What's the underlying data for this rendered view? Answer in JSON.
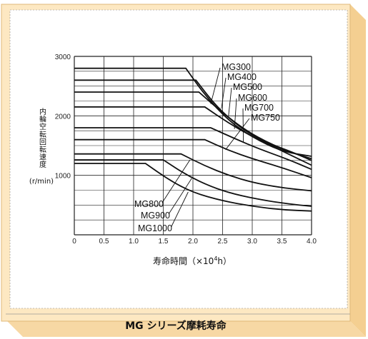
{
  "caption": "MG シリーズ摩耗寿命",
  "colors": {
    "panel": "#fde8c2",
    "panel_side": "#f6d49b",
    "axis": "#222222"
  },
  "chart_data": {
    "type": "line",
    "xlabel_prefix": "寿命時間（×10",
    "xlabel_sup": "4",
    "xlabel_suffix": "h）",
    "ylabel": "内輪空転回転速度",
    "ylabel_unit": "(r/min)",
    "xlim": [
      0,
      4.0
    ],
    "ylim": [
      0,
      3000
    ],
    "xticks": [
      "0",
      "0.5",
      "1.0",
      "1.5",
      "2.0",
      "2.5",
      "3.0",
      "3.5",
      "4.0"
    ],
    "yticks": [
      "1000",
      "2000",
      "3000"
    ],
    "legend": "annotations with leader lines",
    "series": [
      {
        "name": "MG300",
        "points": [
          [
            0,
            2800
          ],
          [
            1.88,
            2800
          ],
          [
            2.2,
            2350
          ],
          [
            2.6,
            1920
          ],
          [
            3.0,
            1640
          ],
          [
            3.5,
            1400
          ],
          [
            4.0,
            1320
          ]
        ]
      },
      {
        "name": "MG400",
        "points": [
          [
            0,
            2600
          ],
          [
            2.05,
            2600
          ],
          [
            2.4,
            2150
          ],
          [
            2.8,
            1800
          ],
          [
            3.2,
            1560
          ],
          [
            3.6,
            1400
          ],
          [
            4.0,
            1280
          ]
        ]
      },
      {
        "name": "MG500",
        "points": [
          [
            0,
            2400
          ],
          [
            2.1,
            2400
          ],
          [
            2.5,
            2050
          ],
          [
            2.9,
            1750
          ],
          [
            3.3,
            1530
          ],
          [
            3.7,
            1380
          ],
          [
            4.0,
            1250
          ]
        ]
      },
      {
        "name": "MG600",
        "points": [
          [
            0,
            2150
          ],
          [
            2.2,
            2150
          ],
          [
            2.6,
            1880
          ],
          [
            3.0,
            1650
          ],
          [
            3.4,
            1460
          ],
          [
            4.0,
            1170
          ]
        ]
      },
      {
        "name": "MG700",
        "points": [
          [
            0,
            1800
          ],
          [
            2.3,
            1800
          ],
          [
            2.7,
            1620
          ],
          [
            3.1,
            1450
          ],
          [
            3.6,
            1270
          ],
          [
            4.0,
            1100
          ]
        ]
      },
      {
        "name": "MG750",
        "points": [
          [
            0,
            1600
          ],
          [
            2.2,
            1600
          ],
          [
            2.6,
            1420
          ],
          [
            3.0,
            1280
          ],
          [
            3.5,
            1130
          ],
          [
            4.0,
            960
          ]
        ]
      },
      {
        "name": "MG800",
        "points": [
          [
            0,
            1360
          ],
          [
            1.8,
            1360
          ],
          [
            2.2,
            1160
          ],
          [
            2.6,
            1000
          ],
          [
            3.0,
            880
          ],
          [
            3.5,
            790
          ],
          [
            4.0,
            740
          ]
        ]
      },
      {
        "name": "MG900",
        "points": [
          [
            0,
            1260
          ],
          [
            1.5,
            1260
          ],
          [
            1.9,
            1000
          ],
          [
            2.3,
            810
          ],
          [
            2.7,
            680
          ],
          [
            3.2,
            580
          ],
          [
            3.6,
            520
          ],
          [
            4.0,
            480
          ]
        ]
      },
      {
        "name": "MG1000",
        "points": [
          [
            0,
            1200
          ],
          [
            1.2,
            1200
          ],
          [
            1.6,
            920
          ],
          [
            2.0,
            710
          ],
          [
            2.5,
            570
          ],
          [
            3.0,
            480
          ],
          [
            3.5,
            420
          ],
          [
            4.0,
            400
          ]
        ]
      }
    ]
  }
}
